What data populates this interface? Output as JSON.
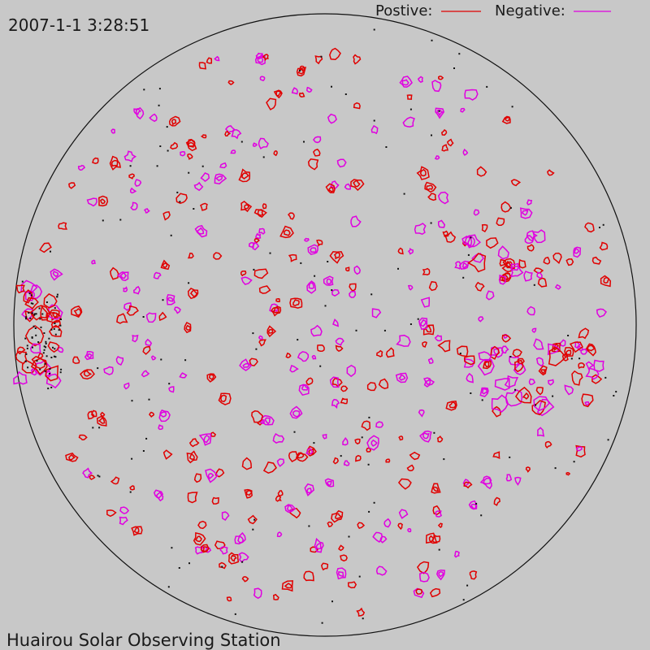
{
  "header": {
    "timestamp": "2007-1-1  3:28:51"
  },
  "legend": [
    {
      "label": "Postive:",
      "color": "#e00000"
    },
    {
      "label": "Negative:",
      "color": "#e000e0"
    }
  ],
  "footer": {
    "station": "Huairou Solar Observing Station"
  }
}
